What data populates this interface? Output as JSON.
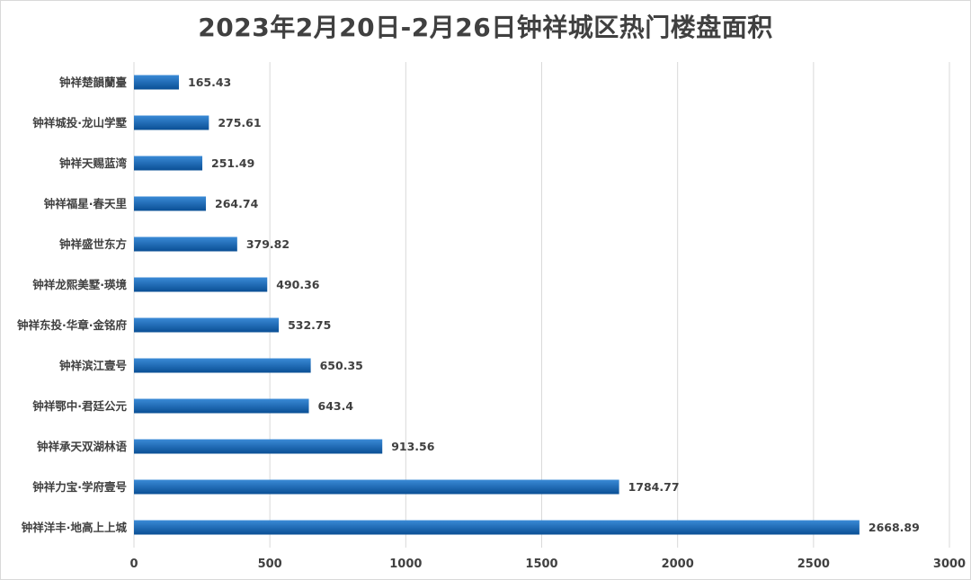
{
  "title": "2023年2月20日-2月26日钟祥城区热门楼盘面积",
  "colors": {
    "bar_top": "#3a8ad6",
    "bar_bottom": "#0a4f95",
    "grid": "#d9d9d9",
    "text": "#404040"
  },
  "chart_data": {
    "type": "bar",
    "orientation": "horizontal",
    "title": "2023年2月20日-2月26日钟祥城区热门楼盘面积",
    "xlabel": "",
    "ylabel": "",
    "xlim": [
      0,
      3000
    ],
    "x_ticks": [
      0,
      500,
      1000,
      1500,
      2000,
      2500,
      3000
    ],
    "grid": true,
    "legend": "none",
    "categories": [
      "钟祥楚韻蘭臺",
      "钟祥城投·龙山学墅",
      "钟祥天赐蓝湾",
      "钟祥福星·春天里",
      "钟祥盛世东方",
      "钟祥龙熙美墅·瑛境",
      "钟祥东投·华章·金铭府",
      "钟祥滨江壹号",
      "钟祥鄂中·君廷公元",
      "钟祥承天双湖林语",
      "钟祥力宝·学府壹号",
      "钟祥洋丰·地高上上城"
    ],
    "values": [
      165.43,
      275.61,
      251.49,
      264.74,
      379.82,
      490.36,
      532.75,
      650.35,
      643.4,
      913.56,
      1784.77,
      2668.89
    ]
  }
}
